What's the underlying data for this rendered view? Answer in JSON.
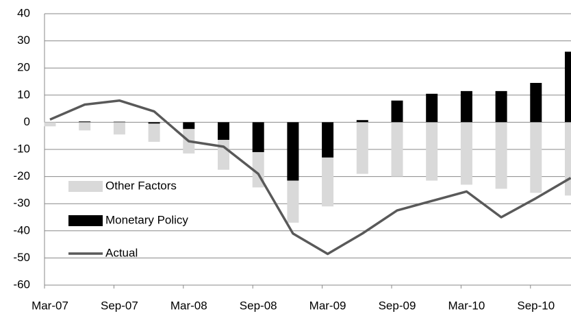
{
  "chart_data": {
    "type": "bar",
    "categories": [
      "Mar-07",
      null,
      "Sep-07",
      null,
      "Mar-08",
      null,
      "Sep-08",
      null,
      "Mar-09",
      null,
      "Sep-09",
      null,
      "Mar-10",
      null,
      "Sep-10",
      null
    ],
    "series": [
      {
        "name": "Other Factors",
        "color": "#d9d9d9",
        "values": [
          -1.5,
          -3,
          -4.5,
          -6.7,
          -9,
          -11,
          -13,
          -15.5,
          -18,
          -19,
          -20,
          -21.5,
          -23,
          -24.5,
          -26,
          -27
        ]
      },
      {
        "name": "Monetary Policy",
        "color": "#000000",
        "values": [
          0,
          0.3,
          0.2,
          -0.5,
          -2.5,
          -6.5,
          -11,
          -21.5,
          -13,
          0.8,
          8,
          10.5,
          11.5,
          11.5,
          14.5,
          26
        ]
      },
      {
        "name": "Actual",
        "type": "line",
        "color": "#595959",
        "values": [
          1,
          6.5,
          8,
          4,
          -7,
          -9,
          -19,
          -41,
          -48.5,
          -41,
          -32.5,
          -29,
          -25.5,
          -35,
          -28,
          -20.5
        ]
      }
    ],
    "ylim": [
      -60,
      40
    ],
    "yticks": [
      -60,
      -50,
      -40,
      -30,
      -20,
      -10,
      0,
      10,
      20,
      30,
      40
    ],
    "grid": true,
    "stacked": true,
    "legend": "lower left"
  }
}
